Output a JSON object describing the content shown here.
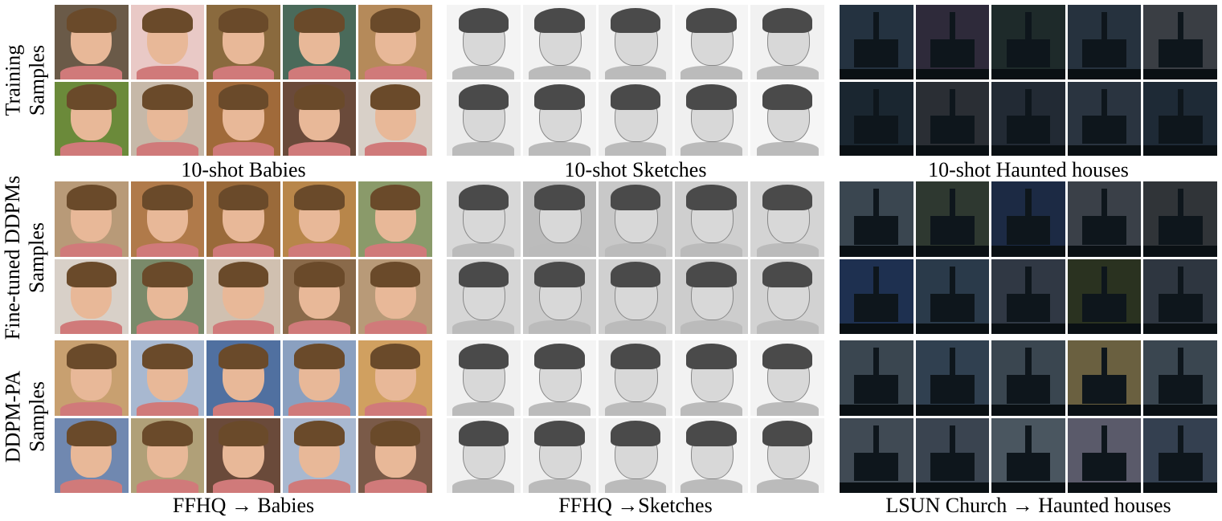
{
  "row_labels": [
    {
      "line1": "Training",
      "line2": "Samples"
    },
    {
      "line1": "Fine-tuned DDPMs",
      "line2": "Samples"
    },
    {
      "line1": "DDPM-PA",
      "line2": "Samples"
    }
  ],
  "captions": {
    "row1": [
      "10-shot Babies",
      "10-shot Sketches",
      "10-shot Haunted houses"
    ],
    "row3": [
      "FFHQ → Babies",
      "FFHQ →Sketches",
      "LSUN Church → Haunted houses"
    ]
  }
}
